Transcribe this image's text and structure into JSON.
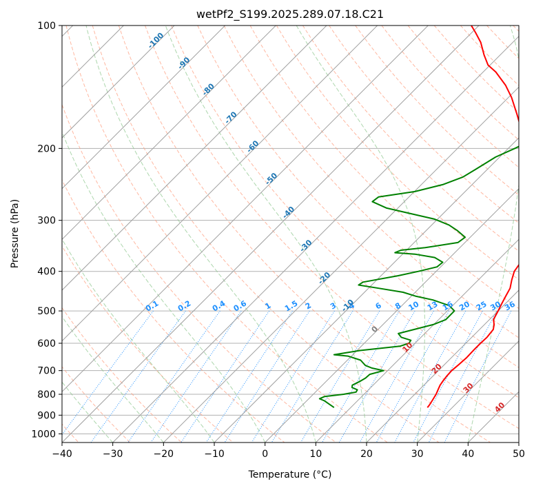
{
  "chart_data": {
    "type": "skew-t",
    "title": "wetPf2_S199.2025.289.07.18.C21",
    "xlabel": "Temperature (°C)",
    "ylabel": "Pressure (hPa)",
    "xlim": [
      -40,
      50
    ],
    "ylim": [
      1050,
      100
    ],
    "x_ticks": [
      "−40",
      "−30",
      "−20",
      "−10",
      "0",
      "10",
      "20",
      "30",
      "40",
      "50"
    ],
    "x_tick_values": [
      -40,
      -30,
      -20,
      -10,
      0,
      10,
      20,
      30,
      40,
      50
    ],
    "y_ticks": [
      "100",
      "200",
      "300",
      "400",
      "500",
      "600",
      "700",
      "800",
      "900",
      "1000"
    ],
    "y_tick_values": [
      100,
      200,
      300,
      400,
      500,
      600,
      700,
      800,
      900,
      1000
    ],
    "grid": true,
    "colors": {
      "temperature": "#ff0000",
      "dewpoint": "#008000",
      "isotherm": "#a0a0a0",
      "dry_adiabat": "#ff9f80",
      "moist_adiabat": "#90c890",
      "mixing_ratio": "#1f8fff",
      "label_blue": "#1f77b4",
      "label_red": "#d62728",
      "label_gray": "#7f7f7f",
      "mixing_label": "#1e90ff"
    },
    "series": [
      {
        "name": "temperature",
        "color": "#ff0000",
        "points": [
          [
            862,
            25.1
          ],
          [
            850,
            25.0
          ],
          [
            830,
            24.7
          ],
          [
            800,
            24.2
          ],
          [
            780,
            23.7
          ],
          [
            760,
            23.2
          ],
          [
            740,
            22.9
          ],
          [
            720,
            22.7
          ],
          [
            700,
            22.6
          ],
          [
            680,
            22.8
          ],
          [
            650,
            23.0
          ],
          [
            620,
            22.9
          ],
          [
            600,
            22.9
          ],
          [
            580,
            23.0
          ],
          [
            555,
            22.7
          ],
          [
            540,
            21.9
          ],
          [
            525,
            20.8
          ],
          [
            500,
            20.0
          ],
          [
            480,
            19.3
          ],
          [
            460,
            18.6
          ],
          [
            440,
            17.9
          ],
          [
            420,
            16.6
          ],
          [
            400,
            15.4
          ],
          [
            385,
            15.0
          ],
          [
            370,
            14.3
          ],
          [
            355,
            12.9
          ],
          [
            330,
            10.9
          ],
          [
            300,
            8.0
          ],
          [
            270,
            4.4
          ],
          [
            250,
            1.4
          ],
          [
            220,
            -3.1
          ],
          [
            200,
            -6.5
          ],
          [
            180,
            -11.1
          ],
          [
            165,
            -15.0
          ],
          [
            150,
            -19.4
          ],
          [
            140,
            -23.0
          ],
          [
            130,
            -27.5
          ],
          [
            125,
            -30.4
          ],
          [
            118,
            -33.2
          ],
          [
            110,
            -36.3
          ],
          [
            104,
            -39.3
          ],
          [
            100,
            -41.5
          ]
        ]
      },
      {
        "name": "dewpoint",
        "color": "#008000",
        "points": [
          [
            862,
            6.7
          ],
          [
            845,
            5.0
          ],
          [
            830,
            3.5
          ],
          [
            820,
            2.1
          ],
          [
            810,
            2.7
          ],
          [
            800,
            6.0
          ],
          [
            790,
            8.0
          ],
          [
            780,
            7.8
          ],
          [
            770,
            6.3
          ],
          [
            760,
            5.9
          ],
          [
            745,
            6.6
          ],
          [
            730,
            7.1
          ],
          [
            715,
            7.2
          ],
          [
            700,
            9.2
          ],
          [
            690,
            6.4
          ],
          [
            680,
            4.6
          ],
          [
            660,
            2.6
          ],
          [
            645,
            -0.7
          ],
          [
            640,
            -3.7
          ],
          [
            625,
            0.6
          ],
          [
            610,
            7.6
          ],
          [
            600,
            8.8
          ],
          [
            590,
            8.6
          ],
          [
            580,
            6.1
          ],
          [
            568,
            4.8
          ],
          [
            555,
            7.1
          ],
          [
            540,
            9.9
          ],
          [
            525,
            11.4
          ],
          [
            500,
            11.4
          ],
          [
            485,
            9.3
          ],
          [
            470,
            5.0
          ],
          [
            460,
            0.8
          ],
          [
            450,
            -2.4
          ],
          [
            440,
            -8.0
          ],
          [
            432,
            -12.6
          ],
          [
            425,
            -12.3
          ],
          [
            410,
            -6.6
          ],
          [
            400,
            -3.5
          ],
          [
            390,
            -0.7
          ],
          [
            380,
            -0.5
          ],
          [
            370,
            -3.0
          ],
          [
            363,
            -7.6
          ],
          [
            360,
            -11.8
          ],
          [
            355,
            -11.1
          ],
          [
            350,
            -6.8
          ],
          [
            340,
            -1.4
          ],
          [
            330,
            -1.0
          ],
          [
            318,
            -3.8
          ],
          [
            308,
            -6.6
          ],
          [
            298,
            -10.6
          ],
          [
            290,
            -15.7
          ],
          [
            280,
            -22.2
          ],
          [
            270,
            -26.3
          ],
          [
            263,
            -26.0
          ],
          [
            255,
            -19.9
          ],
          [
            245,
            -15.7
          ],
          [
            235,
            -13.3
          ],
          [
            225,
            -12.3
          ],
          [
            210,
            -10.8
          ],
          [
            200,
            -8.7
          ],
          [
            190,
            -6.8
          ],
          [
            178,
            -6.0
          ],
          [
            160,
            -4.3
          ],
          [
            140,
            -3.7
          ],
          [
            128,
            -4.3
          ],
          [
            120,
            -4.7
          ],
          [
            114,
            -5.3
          ],
          [
            108,
            -5.2
          ],
          [
            104,
            -4.5
          ],
          [
            100,
            -1.9
          ]
        ]
      }
    ],
    "isotherm_temps": [
      -120,
      -110,
      -100,
      -90,
      -80,
      -70,
      -60,
      -50,
      -40,
      -30,
      -20,
      -10,
      0,
      10,
      20,
      30,
      40,
      50
    ],
    "dry_adiabat_temps": [
      -40,
      -30,
      -20,
      -10,
      0,
      10,
      20,
      30,
      40,
      50,
      60,
      70,
      80,
      90,
      100,
      110,
      120,
      130,
      140,
      150,
      160,
      170,
      180,
      190,
      200
    ],
    "moist_adiabat_temps": [
      -30,
      -20,
      -10,
      0,
      10,
      20,
      30,
      40
    ],
    "mixing_ratios": [
      0.1,
      0.2,
      0.4,
      0.6,
      1,
      1.5,
      2,
      3,
      4,
      6,
      8,
      10,
      13,
      16,
      20,
      25,
      30,
      36
    ],
    "mixing_ratio_labels": [
      "0.1",
      "0.2",
      "0.4",
      "0.6",
      "1",
      "1.5",
      "2",
      "3",
      "4",
      "6",
      "8",
      "10",
      "13",
      "16",
      "20",
      "25",
      "30",
      "36"
    ],
    "mixing_label_pressure": 500,
    "isotherm_labels_upper": [
      {
        "text": "-100",
        "temp": -100
      },
      {
        "text": "-90",
        "temp": -90
      },
      {
        "text": "-80",
        "temp": -80
      },
      {
        "text": "-70",
        "temp": -70
      },
      {
        "text": "-60",
        "temp": -60
      },
      {
        "text": "-50",
        "temp": -50
      },
      {
        "text": "-40",
        "temp": -40
      },
      {
        "text": "-30",
        "temp": -30
      },
      {
        "text": "-20",
        "temp": -20
      },
      {
        "text": "-10",
        "temp": -10
      }
    ],
    "isotherm_labels_lower": [
      {
        "text": "0",
        "temp": 0
      },
      {
        "text": "10",
        "temp": 10
      },
      {
        "text": "20",
        "temp": 20
      },
      {
        "text": "30",
        "temp": 30
      },
      {
        "text": "40",
        "temp": 40
      }
    ]
  }
}
